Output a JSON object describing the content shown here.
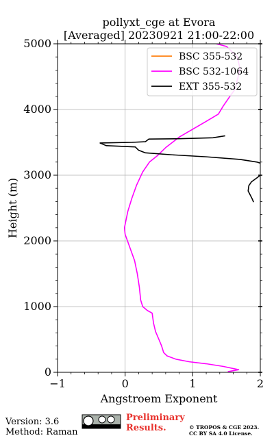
{
  "chart_data": {
    "type": "line",
    "title": "pollyxt_cge at Evora",
    "subtitle": "[Averaged] 20230921 21:00-22:00",
    "xlabel": "Angstroem Exponent",
    "ylabel": "Height (m)",
    "xlim": [
      -1,
      2
    ],
    "ylim": [
      0,
      5000
    ],
    "x_ticks": [
      "−1",
      "0",
      "1",
      "2"
    ],
    "y_ticks": [
      "0",
      "1000",
      "2000",
      "3000",
      "4000",
      "5000"
    ],
    "grid": true,
    "legend_position": "top-right",
    "series": [
      {
        "name": "BSC 355-532",
        "color": "#ff7f0e",
        "points": []
      },
      {
        "name": "BSC 532-1064",
        "color": "#ff00ff",
        "points": [
          [
            1.52,
            10
          ],
          [
            1.68,
            40
          ],
          [
            1.45,
            90
          ],
          [
            1.2,
            130
          ],
          [
            0.95,
            160
          ],
          [
            0.75,
            200
          ],
          [
            0.62,
            250
          ],
          [
            0.57,
            300
          ],
          [
            0.54,
            400
          ],
          [
            0.5,
            500
          ],
          [
            0.45,
            620
          ],
          [
            0.42,
            750
          ],
          [
            0.4,
            900
          ],
          [
            0.33,
            940
          ],
          [
            0.26,
            1000
          ],
          [
            0.23,
            1100
          ],
          [
            0.21,
            1300
          ],
          [
            0.18,
            1500
          ],
          [
            0.14,
            1700
          ],
          [
            0.07,
            1900
          ],
          [
            0.0,
            2100
          ],
          [
            -0.01,
            2200
          ],
          [
            0.01,
            2300
          ],
          [
            0.04,
            2450
          ],
          [
            0.1,
            2650
          ],
          [
            0.17,
            2850
          ],
          [
            0.26,
            3050
          ],
          [
            0.36,
            3200
          ],
          [
            0.48,
            3300
          ],
          [
            0.6,
            3420
          ],
          [
            0.8,
            3580
          ],
          [
            1.0,
            3700
          ],
          [
            1.2,
            3820
          ],
          [
            1.38,
            3930
          ],
          [
            1.45,
            4050
          ],
          [
            1.55,
            4200
          ],
          [
            1.62,
            4300
          ],
          [
            1.66,
            4450
          ],
          [
            1.7,
            4620
          ],
          [
            1.66,
            4800
          ],
          [
            1.5,
            4960
          ],
          [
            1.35,
            5000
          ]
        ]
      },
      {
        "name": "EXT 355-532",
        "color": "#000000",
        "points": [
          [
            1.9,
            2590
          ],
          [
            1.88,
            2640
          ],
          [
            1.85,
            2700
          ],
          [
            1.82,
            2760
          ],
          [
            1.83,
            2840
          ],
          [
            1.87,
            2900
          ],
          [
            1.95,
            2960
          ],
          [
            2.0,
            3000
          ],
          [
            2.05,
            3080
          ],
          [
            2.1,
            3150
          ],
          [
            1.95,
            3200
          ],
          [
            1.7,
            3240
          ],
          [
            1.2,
            3280
          ],
          [
            0.7,
            3310
          ],
          [
            0.3,
            3340
          ],
          [
            0.2,
            3380
          ],
          [
            0.15,
            3430
          ],
          [
            -0.28,
            3450
          ],
          [
            -0.37,
            3490
          ],
          [
            0.1,
            3500
          ],
          [
            0.3,
            3510
          ],
          [
            0.35,
            3550
          ],
          [
            0.8,
            3555
          ],
          [
            1.3,
            3570
          ],
          [
            1.48,
            3600
          ]
        ]
      }
    ]
  },
  "footer": {
    "version": "Version: 3.6",
    "method": "Method: Raman",
    "cc_logo_label": "cc BY SA",
    "preliminary_line1": "Preliminary",
    "preliminary_line2": "Results.",
    "copyright_line1": "© TROPOS & CGE 2023.",
    "copyright_line2": "CC BY SA 4.0 License."
  }
}
